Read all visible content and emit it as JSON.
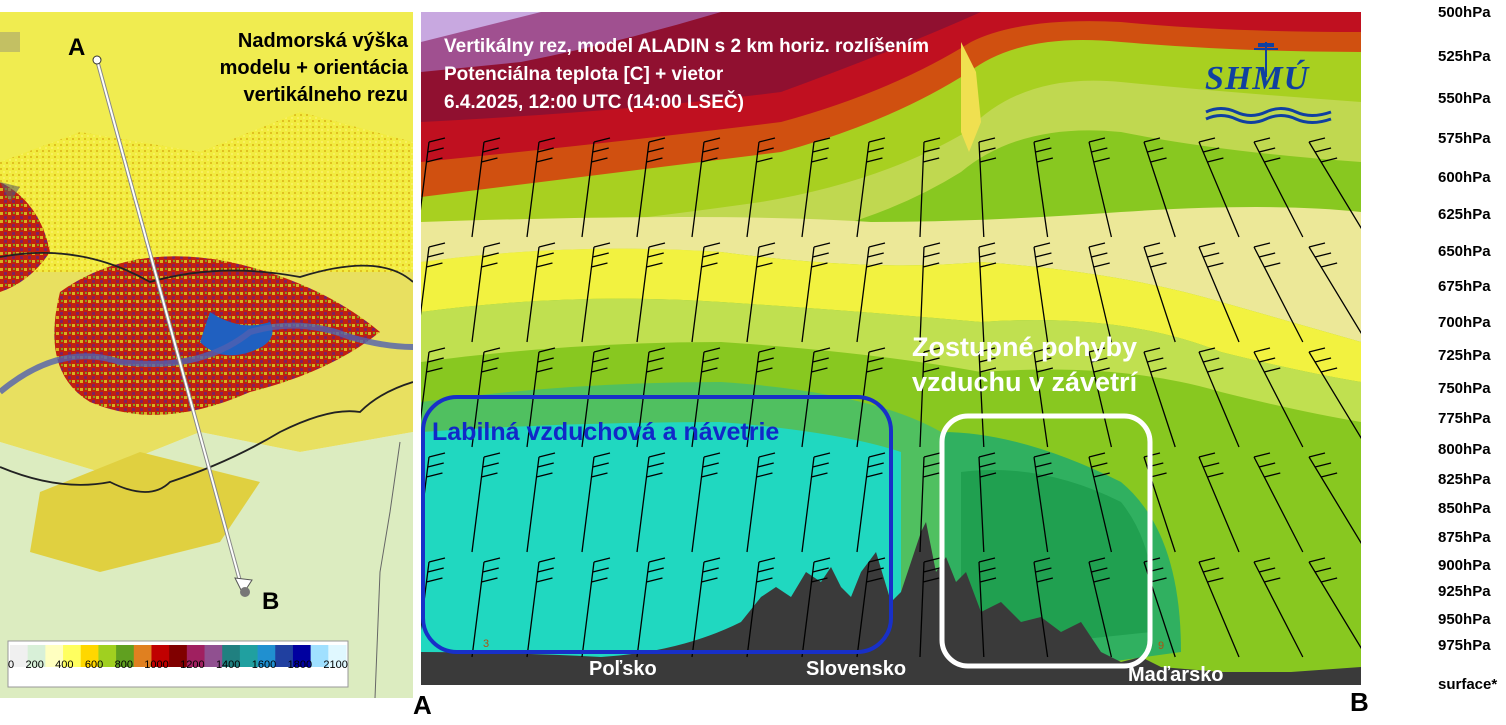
{
  "map_panel": {
    "title_lines": [
      "Nadmorská výška",
      "modelu + orientácia",
      "vertikálneho rezu"
    ],
    "point_a": "A",
    "point_b": "B",
    "colorbar": {
      "ticks": [
        "0",
        "200",
        "400",
        "600",
        "800",
        "1000",
        "1200",
        "1400",
        "1600",
        "1800",
        "2100"
      ],
      "colors": [
        "#f0f0f0",
        "#d8f0d8",
        "#ffffc0",
        "#ffff60",
        "#ffd700",
        "#a0d020",
        "#60a020",
        "#e08020",
        "#c00000",
        "#800000",
        "#a02060",
        "#905090",
        "#208080",
        "#20a0a0",
        "#2090d0",
        "#2040a0",
        "#0000a0",
        "#a0e0ff",
        "#e0f8ff"
      ]
    }
  },
  "cross_section": {
    "title_lines": [
      "Vertikálny rez, model ALADIN s 2 km horiz. rozlíšením",
      "Potenciálna teplota [C] + vietor",
      "6.4.2025, 12:00 UTC (14:00 LSEČ)"
    ],
    "logo_text": "SHMÚ",
    "annotation_blue": "Labilná vzduchová a návetrie",
    "annotation_white_lines": [
      "Zostupné pohyby",
      "vzduchu v závetrí"
    ],
    "countries": [
      "Poľsko",
      "Slovensko",
      "Maďarsko"
    ],
    "small_numbers": [
      "3",
      "9"
    ],
    "axis_start": "A",
    "axis_end": "B",
    "pressure_levels": [
      "500hPa",
      "525hPa",
      "550hPa",
      "575hPa",
      "600hPa",
      "625hPa",
      "650hPa",
      "675hPa",
      "700hPa",
      "725hPa",
      "750hPa",
      "775hPa",
      "800hPa",
      "825hPa",
      "850hPa",
      "875hPa",
      "900hPa",
      "925hPa",
      "950hPa",
      "975hPa",
      "surface*"
    ]
  }
}
